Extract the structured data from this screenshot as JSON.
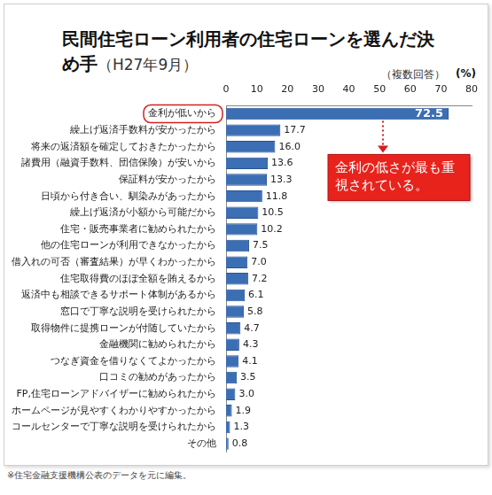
{
  "chart_data": {
    "type": "bar",
    "orientation": "horizontal",
    "title": "民間住宅ローン利用者の住宅ローンを選んだ決め手",
    "subtitle": "（H27年9月）",
    "note": "（複数回答）",
    "xlabel": "(%)",
    "annotation": "金利の低さが最も重視されている。",
    "source": "※住宅金融支援機構公表のデータを元に編集。",
    "categories": [
      "金利が低いから",
      "繰上げ返済手数料が安かったから",
      "将来の返済額を確定しておきたかったから",
      "諸費用（融資手数料、団信保険）が安いから",
      "保証料が安かったから",
      "日頃から付き合い、馴染みがあったから",
      "繰上げ返済が小額から可能だから",
      "住宅・販売事業者に勧められたから",
      "他の住宅ローンが利用できなかったから",
      "借入れの可否（審査結果）が早くわかったから",
      "住宅取得費のほぼ全額を賄えるから",
      "返済中も相談できるサポート体制があるから",
      "窓口で丁寧な説明を受けられたから",
      "取得物件に提携ローンが付随していたから",
      "金融機関に勧められたから",
      "つなぎ資金を借りなくてよかったから",
      "口コミの勧めがあったから",
      "FP,住宅ローンアドバイザーに勧められたから",
      "ホームページが見やすくわかりやすかったから",
      "コールセンターで丁寧な説明を受けられたから",
      "その他"
    ],
    "values": [
      72.5,
      17.7,
      16.0,
      13.6,
      13.3,
      11.8,
      10.5,
      10.2,
      7.5,
      7.0,
      7.2,
      6.1,
      5.8,
      4.7,
      4.3,
      4.1,
      3.5,
      3.0,
      1.9,
      1.3,
      0.8
    ],
    "value_labels": [
      "72.5",
      "17.7",
      "16.0",
      "13.6",
      "13.3",
      "11.8",
      "10.5",
      "10.2",
      "7.5",
      "7.0",
      "7.2",
      "6.1",
      "5.8",
      "4.7",
      "4.3",
      "4.1",
      "3.5",
      "3.0",
      "1.9",
      "1.3",
      "0.8"
    ],
    "color": "#3c6eb4",
    "xlim": [
      0,
      80
    ],
    "xticks": [
      0,
      10,
      20,
      30,
      40,
      50,
      60,
      70,
      80
    ],
    "grid": false,
    "data_labels": true
  }
}
